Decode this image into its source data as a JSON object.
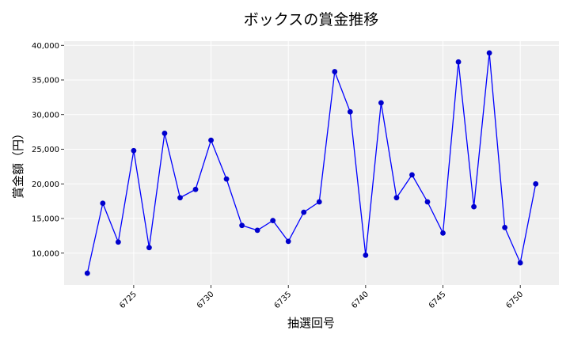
{
  "chart_data": {
    "type": "line",
    "title": "ボックスの賞金推移",
    "xlabel": "抽選回号",
    "ylabel": "賞金額（円）",
    "xlim": [
      6720.5,
      6752.5
    ],
    "ylim": [
      5400,
      40600
    ],
    "x_ticks": [
      6725,
      6730,
      6735,
      6740,
      6745,
      6750
    ],
    "y_ticks": [
      10000,
      15000,
      20000,
      25000,
      30000,
      35000,
      40000
    ],
    "y_tick_labels": [
      "10,000",
      "15,000",
      "20,000",
      "25,000",
      "30,000",
      "35,000",
      "40,000"
    ],
    "grid": true,
    "colors": {
      "line": "#0000ff",
      "marker": "#0000cc",
      "plot_bg": "#efefef",
      "grid": "#ffffff"
    },
    "x": [
      6722,
      6723,
      6724,
      6725,
      6726,
      6727,
      6728,
      6729,
      6730,
      6731,
      6732,
      6733,
      6734,
      6735,
      6736,
      6737,
      6738,
      6739,
      6740,
      6741,
      6742,
      6743,
      6744,
      6745,
      6746,
      6747,
      6748,
      6749,
      6750,
      6751
    ],
    "series": [
      {
        "values": [
          7100,
          17200,
          11600,
          24800,
          10800,
          27300,
          18000,
          19200,
          26300,
          20700,
          14000,
          13300,
          14700,
          11700,
          15900,
          17400,
          36200,
          30400,
          9700,
          31700,
          18000,
          21300,
          17400,
          12900,
          37600,
          16700,
          38900,
          13700,
          8600,
          20000
        ]
      }
    ]
  }
}
